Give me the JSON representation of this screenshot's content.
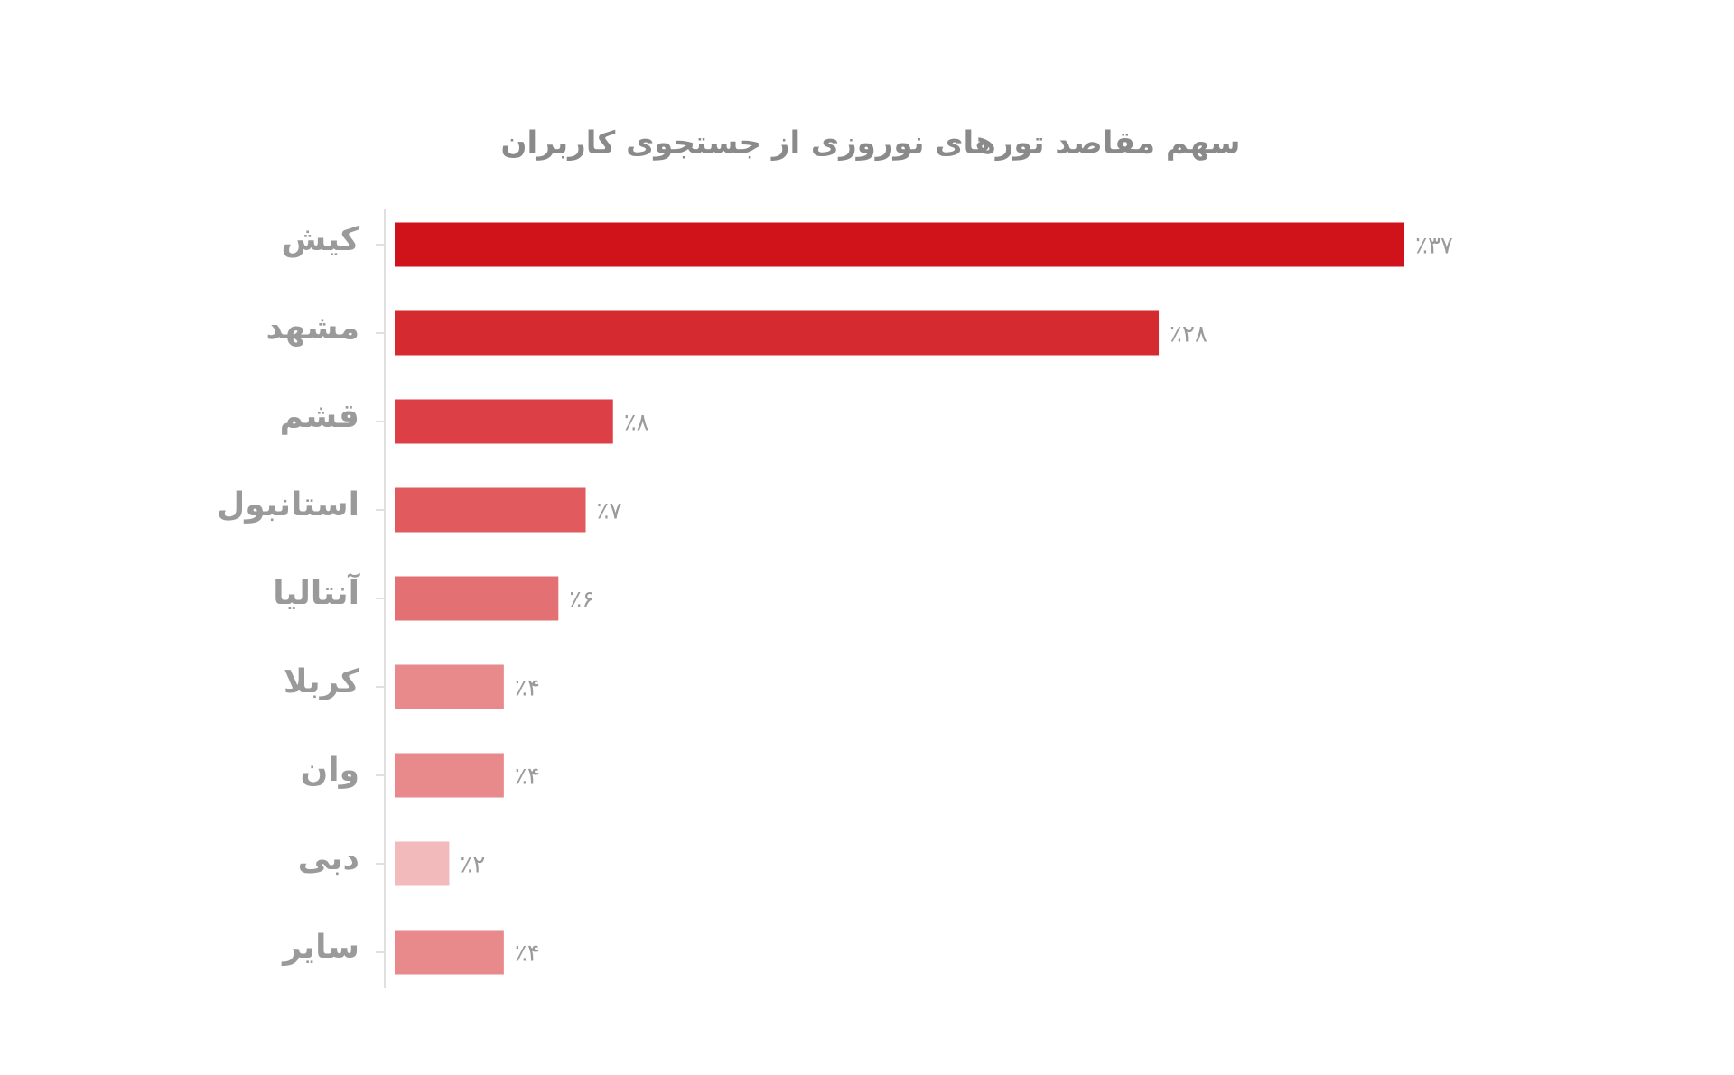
{
  "chart_data": {
    "type": "bar",
    "orientation": "horizontal",
    "title": "سهم مقاصد تورهای  نوروزی از جستجوی کاربران",
    "categories": [
      "کیش",
      "مشهد",
      "قشم",
      "استانبول",
      "آنتالیا",
      "کربلا",
      "وان",
      "دبی",
      "سایر"
    ],
    "values": [
      37,
      28,
      8,
      7,
      6,
      4,
      4,
      2,
      4
    ],
    "value_labels": [
      "٪۳۷",
      "٪۲۸",
      "٪۸",
      "٪۷",
      "٪۶",
      "٪۴",
      "٪۴",
      "٪۲",
      "٪۴"
    ],
    "colors": [
      "#d0121b",
      "#d42a30",
      "#dc3f45",
      "#e05a5e",
      "#e37072",
      "#e88a8b",
      "#e88a8b",
      "#f2babb",
      "#e88a8b"
    ]
  }
}
